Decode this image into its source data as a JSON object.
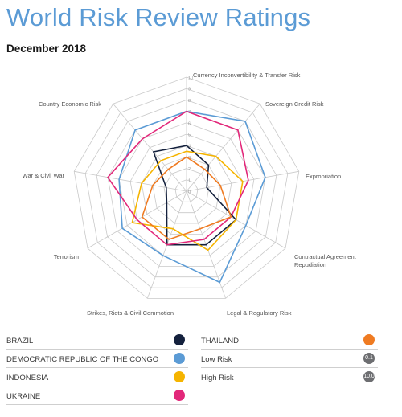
{
  "header": {
    "title": "World Risk Review Ratings",
    "subtitle": "December 2018"
  },
  "chart_data": {
    "type": "radar",
    "axes": [
      "Currency Inconvertibility & Transfer Risk",
      "Sovereign Credit Risk",
      "Expropriation",
      "Contractual Agreement Repudiation",
      "Legal & Regulatory Risk",
      "Strikes, Riots & Civil Commotion",
      "Terrorism",
      "War & Civil War",
      "Country Economic Risk"
    ],
    "tick_labels": [
      "0",
      "1",
      "2",
      "3",
      "4",
      "5",
      "6",
      "7",
      "8",
      "9",
      "10"
    ],
    "range": [
      0,
      10
    ],
    "series": [
      {
        "name": "BRAZIL",
        "color": "#14213d",
        "values": [
          4,
          3,
          1.8,
          5,
          5,
          5,
          2,
          1.8,
          4.5
        ]
      },
      {
        "name": "DEMOCRATIC REPUBLIC OF THE CONGO",
        "color": "#5b9bd5",
        "values": [
          7,
          8,
          7,
          6,
          8.5,
          6,
          6.5,
          6,
          7
        ]
      },
      {
        "name": "INDONESIA",
        "color": "#f5b400",
        "values": [
          3.5,
          4,
          5,
          5,
          5.5,
          3.5,
          5.5,
          4,
          3.5
        ]
      },
      {
        "name": "UKRAINE",
        "color": "#e2287a",
        "values": [
          7,
          7,
          5.5,
          4.5,
          4.5,
          5,
          5,
          7,
          6
        ]
      },
      {
        "name": "THAILAND",
        "color": "#ef7b22",
        "values": [
          3,
          2.5,
          3,
          4.5,
          3.5,
          4.5,
          4.5,
          3,
          2.5
        ]
      }
    ]
  },
  "legend": {
    "left": [
      {
        "label": "BRAZIL",
        "color": "#14213d"
      },
      {
        "label": "DEMOCRATIC REPUBLIC OF THE CONGO",
        "color": "#5b9bd5"
      },
      {
        "label": "INDONESIA",
        "color": "#f5b400"
      },
      {
        "label": "UKRAINE",
        "color": "#e2287a"
      }
    ],
    "right": [
      {
        "label": "THAILAND",
        "color": "#ef7b22",
        "badge": ""
      },
      {
        "label": "Low Risk",
        "color": "#6d6e71",
        "badge": "0.1"
      },
      {
        "label": "High Risk",
        "color": "#6d6e71",
        "badge": "10.0"
      }
    ]
  }
}
